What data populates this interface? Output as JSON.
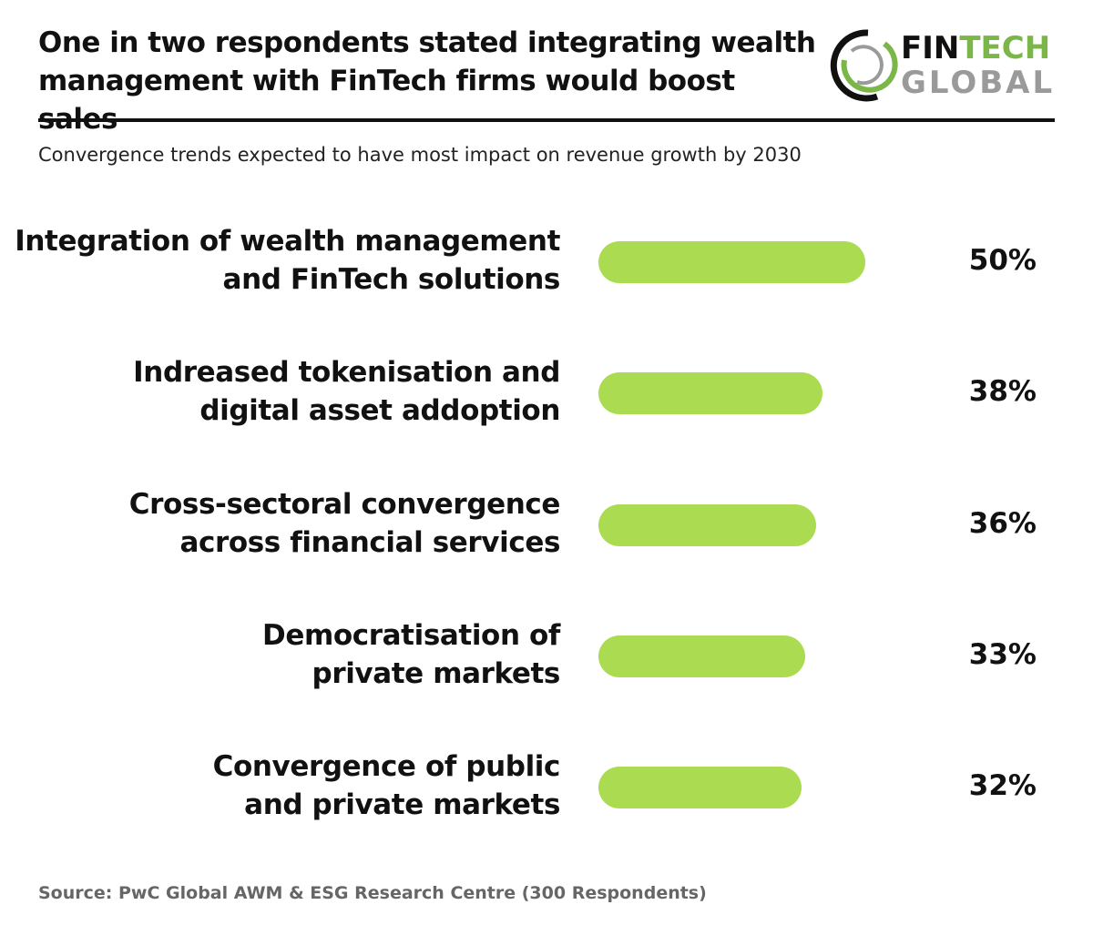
{
  "header": {
    "title": "One in two respondents stated integrating wealth management with FinTech firms would boost sales",
    "logo": {
      "line1_a": "FIN",
      "line1_b": "TECH",
      "line2": "GLOBAL",
      "colors": {
        "black": "#111111",
        "green": "#7ab648",
        "gray": "#9a9a9a"
      }
    }
  },
  "chart_data": {
    "type": "bar",
    "orientation": "horizontal",
    "title": "Convergence trends expected to have most impact on revenue growth by 2030",
    "categories": [
      [
        "Integration of wealth management",
        "and FinTech solutions"
      ],
      [
        "Indreased tokenisation and",
        "digital asset addoption"
      ],
      [
        "Cross-sectoral convergence",
        "across financial services"
      ],
      [
        "Democratisation of",
        "private markets"
      ],
      [
        "Convergence of public",
        "and private markets"
      ]
    ],
    "values": [
      50,
      38,
      36,
      33,
      32
    ],
    "value_labels": [
      "50%",
      "38%",
      "36%",
      "33%",
      "32%"
    ],
    "bar_color": "#abdb50",
    "grid": false
  },
  "footer": {
    "source": "Source: PwC Global AWM & ESG Research Centre (300 Respondents)"
  }
}
